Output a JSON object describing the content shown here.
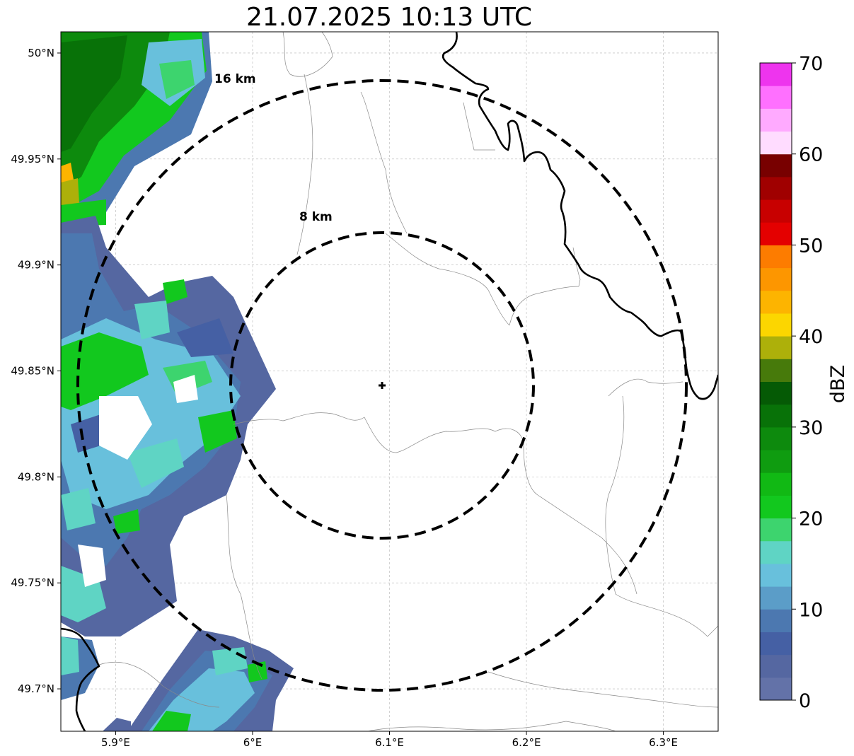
{
  "title": "21.07.2025 10:13 UTC",
  "map": {
    "lon_range": [
      5.86,
      6.34
    ],
    "lat_range": [
      49.68,
      50.01
    ],
    "radar_center": {
      "lon": 6.095,
      "lat": 49.842
    },
    "range_rings": [
      {
        "label": "8 km",
        "radius_km": 8
      },
      {
        "label": "16 km",
        "radius_km": 16
      }
    ],
    "x_ticks": [
      {
        "value": 5.9,
        "label": "5.9°E"
      },
      {
        "value": 6.0,
        "label": "6°E"
      },
      {
        "value": 6.1,
        "label": "6.1°E"
      },
      {
        "value": 6.2,
        "label": "6.2°E"
      },
      {
        "value": 6.3,
        "label": "6.3°E"
      }
    ],
    "y_ticks": [
      {
        "value": 50.0,
        "label": "50°N"
      },
      {
        "value": 49.95,
        "label": "49.95°N"
      },
      {
        "value": 49.9,
        "label": "49.9°N"
      },
      {
        "value": 49.85,
        "label": "49.85°N"
      },
      {
        "value": 49.8,
        "label": "49.8°N"
      },
      {
        "value": 49.75,
        "label": "49.75°N"
      },
      {
        "value": 49.7,
        "label": "49.7°N"
      }
    ],
    "grid": true
  },
  "colorbar": {
    "label": "dBZ",
    "min": 0,
    "max": 70,
    "step": 2.5,
    "tick_values": [
      0,
      10,
      20,
      30,
      40,
      50,
      60,
      70
    ],
    "colors": [
      "#6372a8",
      "#5567a1",
      "#4560a4",
      "#4c78b0",
      "#5b9dc8",
      "#68c0dc",
      "#5fd4c4",
      "#3dd46e",
      "#12c81e",
      "#11b914",
      "#0f9c10",
      "#0d8a0d",
      "#087208",
      "#055a05",
      "#477a0b",
      "#adb00a",
      "#fcd600",
      "#fdb400",
      "#fd9600",
      "#fd7c00",
      "#e40000",
      "#c80000",
      "#a00000",
      "#780000",
      "#ffdcff",
      "#ffaaff",
      "#ff70ff",
      "#ee34ee"
    ]
  },
  "echo_intensity_dbz": {
    "west_edge_band": [
      2,
      12,
      25,
      30
    ],
    "northwest_core": [
      28,
      32,
      34,
      40
    ],
    "southwest_cluster": [
      4,
      8,
      14,
      20
    ]
  }
}
